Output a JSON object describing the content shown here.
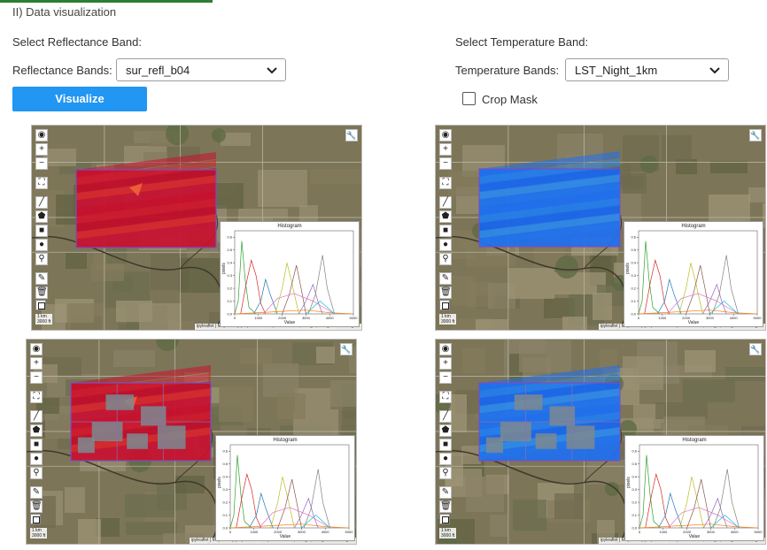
{
  "section_title": "II) Data visualization",
  "reflectance": {
    "heading": "Select Reflectance Band:",
    "label": "Reflectance Bands:",
    "value": "sur_refl_b04"
  },
  "temperature": {
    "heading": "Select Temperature Band:",
    "label": "Temperature Bands:",
    "value": "LST_Night_1km"
  },
  "visualize_label": "Visualize",
  "crop_mask_label": "Crop Mask",
  "map_controls": {
    "zoom_in": "+",
    "zoom_out": "−",
    "scale_km": "1 km",
    "scale_ft": "3000 ft",
    "attribution_prefix": "ipyleaflet | Map data (c)",
    "attribution_link": "OpenStreetMap",
    "attribution_suffix": "contributors, Google, Google Earth Engine"
  },
  "colors": {
    "accent": "#2196f3",
    "reflectance_overlay": "#c8102e",
    "temperature_overlay": "#1e6ff0"
  },
  "histogram": {
    "title": "Histogram",
    "xlabel": "Value",
    "ylabel": "pixels",
    "x_ticks": [
      "0",
      "1000",
      "2000",
      "3000",
      "4000",
      "5000"
    ],
    "y_ticks": [
      "0.0",
      "0.1",
      "0.2",
      "0.3",
      "0.4",
      "0.5",
      "0.6"
    ]
  },
  "chart_data": {
    "type": "line",
    "title": "Histogram",
    "xlabel": "Value",
    "ylabel": "pixels",
    "xlim": [
      0,
      5000
    ],
    "ylim": [
      0,
      0.65
    ],
    "series": [
      {
        "color": "#2ca02c",
        "x": [
          0,
          150,
          300,
          450,
          600,
          900
        ],
        "values": [
          0,
          0.1,
          0.57,
          0.25,
          0.05,
          0
        ]
      },
      {
        "color": "#d62728",
        "x": [
          250,
          500,
          700,
          900,
          1100,
          1300
        ],
        "values": [
          0,
          0.25,
          0.42,
          0.3,
          0.08,
          0
        ]
      },
      {
        "color": "#1f77b4",
        "x": [
          800,
          1100,
          1300,
          1500,
          1800
        ],
        "values": [
          0,
          0.1,
          0.27,
          0.15,
          0
        ]
      },
      {
        "color": "#ff7f0e",
        "x": [
          0,
          1000,
          2000,
          3000,
          4000,
          5000
        ],
        "values": [
          0,
          0.01,
          0.02,
          0.03,
          0.01,
          0
        ]
      },
      {
        "color": "#bcbd22",
        "x": [
          1700,
          2000,
          2200,
          2400,
          2700
        ],
        "values": [
          0,
          0.2,
          0.4,
          0.25,
          0
        ]
      },
      {
        "color": "#8c564b",
        "x": [
          2000,
          2300,
          2600,
          2800,
          3000
        ],
        "values": [
          0,
          0.15,
          0.38,
          0.2,
          0
        ]
      },
      {
        "color": "#9467bd",
        "x": [
          2700,
          3000,
          3300,
          3500,
          3700
        ],
        "values": [
          0,
          0.1,
          0.23,
          0.1,
          0
        ]
      },
      {
        "color": "#e377c2",
        "x": [
          1200,
          1800,
          2500,
          3300,
          4200
        ],
        "values": [
          0,
          0.12,
          0.16,
          0.1,
          0
        ]
      },
      {
        "color": "#7f7f7f",
        "x": [
          3100,
          3400,
          3700,
          3900,
          4200
        ],
        "values": [
          0,
          0.15,
          0.46,
          0.2,
          0
        ]
      },
      {
        "color": "#17becf",
        "x": [
          3000,
          3300,
          3600,
          3900,
          4200
        ],
        "values": [
          0,
          0.05,
          0.1,
          0.05,
          0
        ]
      }
    ]
  }
}
